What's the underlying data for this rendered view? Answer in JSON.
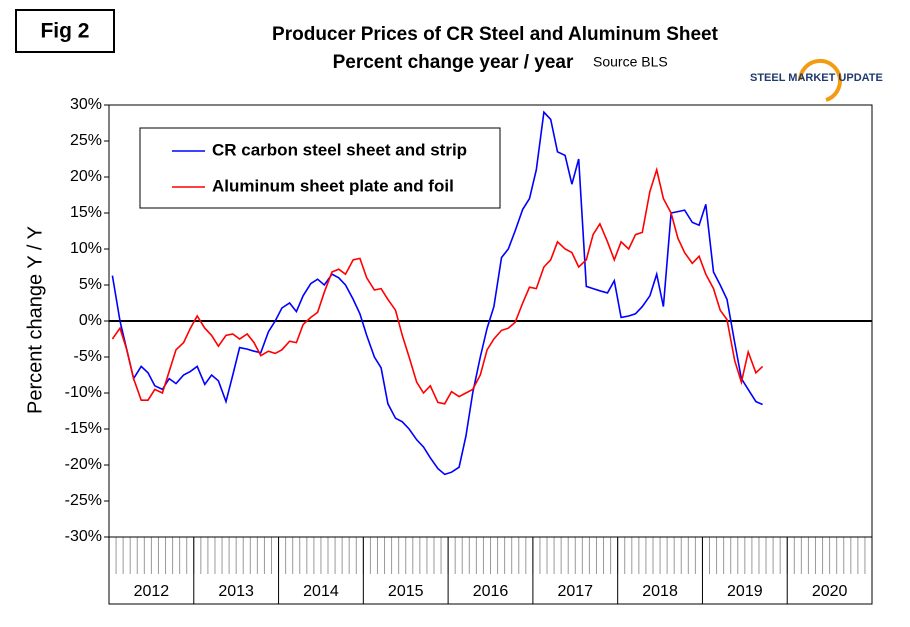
{
  "fig_label": "Fig 2",
  "logo": "STEEL MARKET UPDATE",
  "chart_data": {
    "type": "line",
    "title": "Producer Prices of CR Steel and Aluminum Sheet",
    "subtitle": "Percent change year / year",
    "source": "Source BLS",
    "y_label": "Percent change Y / Y",
    "ylim": [
      -30,
      30
    ],
    "yticks": [
      {
        "value": 30,
        "label": "30%"
      },
      {
        "value": 25,
        "label": "25%"
      },
      {
        "value": 20,
        "label": "20%"
      },
      {
        "value": 15,
        "label": "15%"
      },
      {
        "value": 10,
        "label": "10%"
      },
      {
        "value": 5,
        "label": "5%"
      },
      {
        "value": 0,
        "label": "0%"
      },
      {
        "value": -5,
        "label": "-5%"
      },
      {
        "value": -10,
        "label": "-10%"
      },
      {
        "value": -15,
        "label": "-15%"
      },
      {
        "value": -20,
        "label": "-20%"
      },
      {
        "value": -25,
        "label": "-25%"
      },
      {
        "value": -30,
        "label": "-30%"
      }
    ],
    "xlim": [
      2012,
      2021
    ],
    "xticks": [
      2012,
      2013,
      2014,
      2015,
      2016,
      2017,
      2018,
      2019,
      2020
    ],
    "zero_line": true,
    "x": [
      2012.04,
      2012.13,
      2012.21,
      2012.29,
      2012.38,
      2012.46,
      2012.54,
      2012.63,
      2012.71,
      2012.79,
      2012.88,
      2012.96,
      2013.04,
      2013.13,
      2013.21,
      2013.29,
      2013.38,
      2013.46,
      2013.54,
      2013.63,
      2013.71,
      2013.79,
      2013.88,
      2013.96,
      2014.04,
      2014.13,
      2014.21,
      2014.29,
      2014.38,
      2014.46,
      2014.54,
      2014.63,
      2014.71,
      2014.79,
      2014.88,
      2014.96,
      2015.04,
      2015.13,
      2015.21,
      2015.29,
      2015.38,
      2015.46,
      2015.54,
      2015.63,
      2015.71,
      2015.79,
      2015.88,
      2015.96,
      2016.04,
      2016.13,
      2016.21,
      2016.29,
      2016.38,
      2016.46,
      2016.54,
      2016.63,
      2016.71,
      2016.79,
      2016.88,
      2016.96,
      2017.04,
      2017.13,
      2017.21,
      2017.29,
      2017.38,
      2017.46,
      2017.54,
      2017.63,
      2017.71,
      2017.79,
      2017.88,
      2017.96,
      2018.04,
      2018.13,
      2018.21,
      2018.29,
      2018.38,
      2018.46,
      2018.54,
      2018.63,
      2018.71,
      2018.79,
      2018.88,
      2018.96,
      2019.04,
      2019.13,
      2019.21,
      2019.29,
      2019.38,
      2019.46,
      2019.54,
      2019.63,
      2019.71
    ],
    "series": [
      {
        "name": "CR carbon steel sheet and strip",
        "color": "#0000ff",
        "values": [
          6.3,
          0,
          -4,
          -8,
          -6.3,
          -7.2,
          -9,
          -9.5,
          -8,
          -8.7,
          -7.5,
          -7,
          -6.3,
          -8.8,
          -7.5,
          -8.3,
          -11.2,
          -7.5,
          -3.7,
          -3.9,
          -4.2,
          -4.4,
          -1.5,
          0,
          1.8,
          2.5,
          1.3,
          3.5,
          5.2,
          5.8,
          5,
          6.5,
          6,
          5,
          3,
          1,
          -2,
          -5,
          -6.5,
          -11.5,
          -13.5,
          -14,
          -15,
          -16.5,
          -17.5,
          -19,
          -20.5,
          -21.3,
          -21,
          -20.3,
          -16,
          -10,
          -5,
          -1,
          2,
          8.8,
          10,
          12.5,
          15.5,
          17,
          21,
          29,
          28,
          23.5,
          23,
          19,
          22.5,
          4.8,
          4.5,
          4.2,
          3.9,
          5.6,
          0.5,
          0.7,
          1,
          2,
          3.5,
          6.5,
          2,
          15,
          15.2,
          15.4,
          13.7,
          13.3,
          16.2,
          6.8,
          5,
          3,
          -3,
          -8,
          -9.5,
          -11.2,
          -11.6
        ]
      },
      {
        "name": "Aluminum sheet plate and foil",
        "color": "#ff0000",
        "values": [
          -2.5,
          -1,
          -4,
          -8,
          -11,
          -11,
          -9.5,
          -10,
          -7,
          -4,
          -3,
          -1,
          0.7,
          -1,
          -2,
          -3.5,
          -2,
          -1.8,
          -2.5,
          -1.8,
          -3,
          -4.8,
          -4.2,
          -4.5,
          -4,
          -2.8,
          -3,
          -0.5,
          0.5,
          1.2,
          4,
          6.8,
          7.2,
          6.5,
          8.5,
          8.7,
          6,
          4.3,
          4.5,
          3,
          1.5,
          -2,
          -5,
          -8.5,
          -10,
          -9,
          -11.3,
          -11.5,
          -9.8,
          -10.5,
          -10,
          -9.5,
          -7.5,
          -4,
          -2.5,
          -1.3,
          -1,
          -0.2,
          2.5,
          4.7,
          4.5,
          7.5,
          8.5,
          11,
          10,
          9.5,
          7.5,
          8.5,
          12,
          13.5,
          11,
          8.5,
          11,
          10,
          12,
          12.3,
          18,
          21,
          17,
          15,
          11.5,
          9.5,
          8,
          9,
          6.5,
          4.5,
          1.5,
          0.2,
          -5.5,
          -8.5,
          -4.3,
          -7.2,
          -6.3
        ]
      }
    ]
  }
}
